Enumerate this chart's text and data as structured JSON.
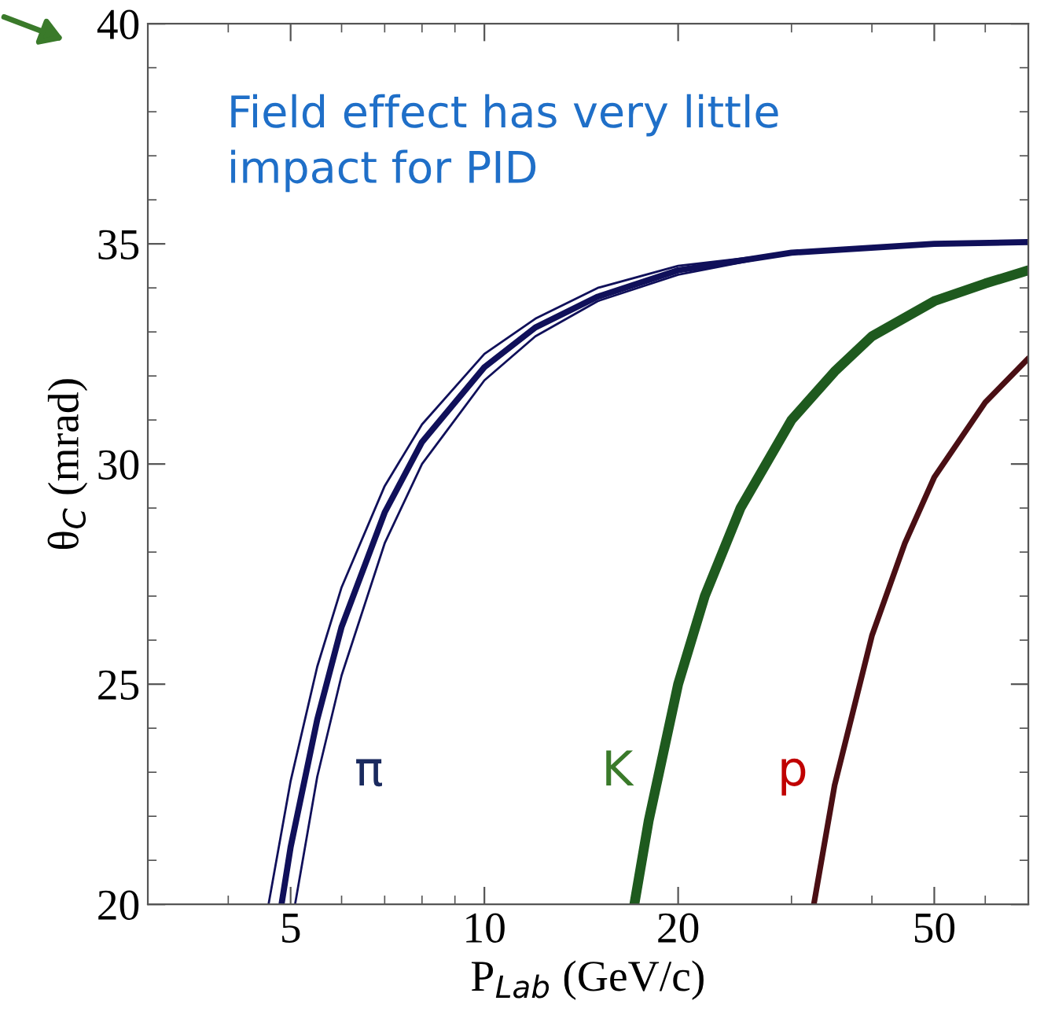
{
  "chart_data": {
    "type": "line",
    "xlabel": "P$_{Lab}$ (GeV/c)",
    "ylabel": "θ$_{C}$ (mrad)",
    "log": "x",
    "xlim": [
      3,
      70
    ],
    "xticks": [
      5,
      10,
      20,
      50
    ],
    "ylim": [
      20,
      40
    ],
    "yticks": [
      20,
      25,
      30,
      35,
      40
    ],
    "grid": false,
    "legend": false,
    "marker": "none",
    "line_style": "solid",
    "annotations": [
      "Field effect has very little\nimpact for PID"
    ],
    "series": [
      {
        "color": "#10105a",
        "x": [
          4.62,
          5,
          5.5,
          6,
          7,
          8,
          10,
          12,
          15,
          20,
          30,
          50,
          70
        ],
        "values": [
          20.0,
          22.8,
          25.4,
          27.2,
          29.5,
          30.9,
          32.5,
          33.3,
          34.0,
          34.5,
          34.8,
          35.0,
          35.05
        ]
      },
      {
        "name": "π",
        "color": "#10105a",
        "x": [
          4.84,
          5,
          5.5,
          6,
          7,
          8,
          10,
          12,
          15,
          20,
          30,
          50,
          70
        ],
        "values": [
          20.0,
          21.3,
          24.2,
          26.3,
          28.9,
          30.5,
          32.2,
          33.1,
          33.8,
          34.4,
          34.8,
          35.0,
          35.04
        ]
      },
      {
        "color": "#10105a",
        "x": [
          5.08,
          5.5,
          6,
          7,
          8,
          10,
          12,
          15,
          20,
          30,
          50,
          70
        ],
        "values": [
          20.0,
          22.9,
          25.2,
          28.2,
          30.0,
          31.9,
          32.9,
          33.7,
          34.3,
          34.8,
          35.0,
          35.04
        ]
      },
      {
        "name": "K",
        "color": "#1e5a1e",
        "x": [
          17.1,
          18,
          20,
          22,
          25,
          30,
          35,
          40,
          50,
          60,
          70
        ],
        "values": [
          20.0,
          21.9,
          25.0,
          27.0,
          29.0,
          31.0,
          32.1,
          32.9,
          33.7,
          34.1,
          34.4
        ]
      },
      {
        "name": "p",
        "color": "#4a0f14",
        "x": [
          32.5,
          35,
          40,
          45,
          50,
          60,
          70
        ],
        "values": [
          20.0,
          22.7,
          26.1,
          28.2,
          29.7,
          31.4,
          32.4
        ]
      }
    ]
  }
}
